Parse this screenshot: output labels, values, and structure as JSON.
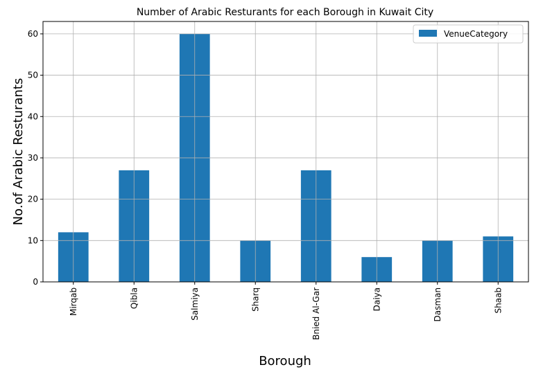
{
  "chart_data": {
    "type": "bar",
    "title": "Number of Arabic Resturants for each Borough in Kuwait City",
    "xlabel": "Borough",
    "ylabel": "No.of Arabic Resturants",
    "categories": [
      "Mirqab",
      "Qibla",
      "Salmiya",
      "Sharq",
      "Bnied Al-Gar",
      "Daiya",
      "Dasman",
      "Shaab"
    ],
    "series": [
      {
        "name": "VenueCategory",
        "values": [
          12,
          27,
          60,
          10,
          27,
          6,
          10,
          11
        ],
        "color": "#1f77b4"
      }
    ],
    "ylim": [
      0,
      63
    ],
    "yticks": [
      0,
      10,
      20,
      30,
      40,
      50,
      60
    ],
    "grid": true,
    "legend_position": "top-right"
  }
}
